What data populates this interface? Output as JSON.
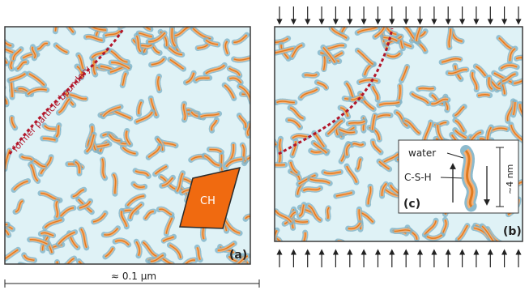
{
  "panel_a": {
    "boundary_label": "former particle boundary",
    "ch_label": "CH",
    "panel_label": "(a)"
  },
  "panel_b": {
    "panel_label": "(b)"
  },
  "inset_c": {
    "water_label": "water",
    "csh_label": "C-S-H",
    "size_label": "~4 nm",
    "panel_label": "(c)"
  },
  "scale": {
    "label": "≈ 0.1 µm"
  },
  "colors": {
    "pore_fill": "#dff2f6",
    "csh_orange": "#e07a1f",
    "csh_light": "#f3b27a",
    "water_dot": "#7fb3c8",
    "boundary_red": "#b3162a",
    "ch_fill": "#f06a10",
    "frame": "#3a3a3a"
  },
  "loads": {
    "top_arrow_count": 18,
    "bottom_arrow_count": 18
  }
}
